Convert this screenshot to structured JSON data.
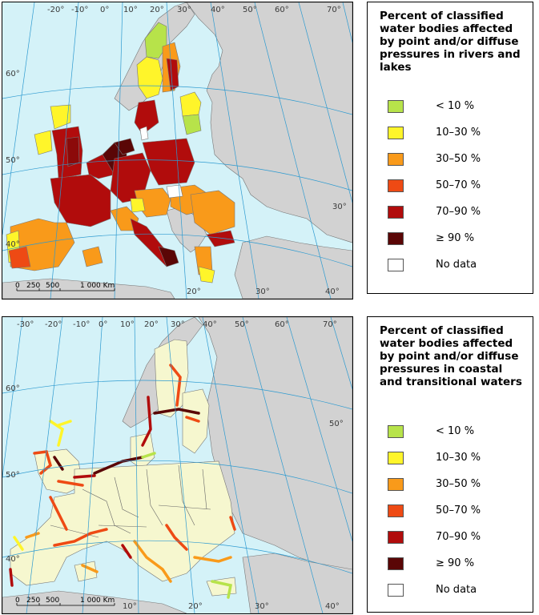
{
  "maps": [
    {
      "title": "Percent of classified water bodies affected by point and/or diffuse pressures in rivers and lakes",
      "ticks_top": [
        "-20°",
        "-10°",
        "0°",
        "10°",
        "20°",
        "30°",
        "40°",
        "50°",
        "60°",
        "70°"
      ],
      "ticks_side": [
        "60°",
        "50°",
        "40°",
        "30°"
      ],
      "ticks_bottom": [
        "20°",
        "30°",
        "40°"
      ],
      "scale": {
        "labels": [
          "0",
          "250",
          "500",
          "1 000 Km"
        ]
      }
    },
    {
      "title": "Percent of classified water bodies affected by point and/or diffuse pressures in coastal and transitional waters",
      "ticks_top": [
        "-30°",
        "-20°",
        "-10°",
        "0°",
        "10°",
        "20°",
        "30°",
        "40°",
        "50°",
        "60°",
        "70°"
      ],
      "ticks_side": [
        "60°",
        "50°",
        "50°",
        "40°"
      ],
      "ticks_bottom": [
        "10°",
        "20°",
        "30°",
        "40°"
      ],
      "scale": {
        "labels": [
          "0",
          "250",
          "500",
          "1 000 Km"
        ]
      }
    }
  ],
  "legend": {
    "classes": [
      {
        "label": "< 10 %",
        "color": "#b7e34a"
      },
      {
        "label": "10–30 %",
        "color": "#fff52a"
      },
      {
        "label": "30–50 %",
        "color": "#f99a1a"
      },
      {
        "label": "50–70 %",
        "color": "#ee4a14"
      },
      {
        "label": "70–90 %",
        "color": "#b10c0c"
      },
      {
        "label": "≥ 90 %",
        "color": "#5a0606"
      },
      {
        "label": "No data",
        "color": "#ffffff"
      }
    ]
  },
  "colors": {
    "sea": "#d4f2f8",
    "non_eu_land": "#d2d2d2",
    "eu_land_coastal": "#f6f7cf",
    "grid": "#2d9ad0"
  }
}
